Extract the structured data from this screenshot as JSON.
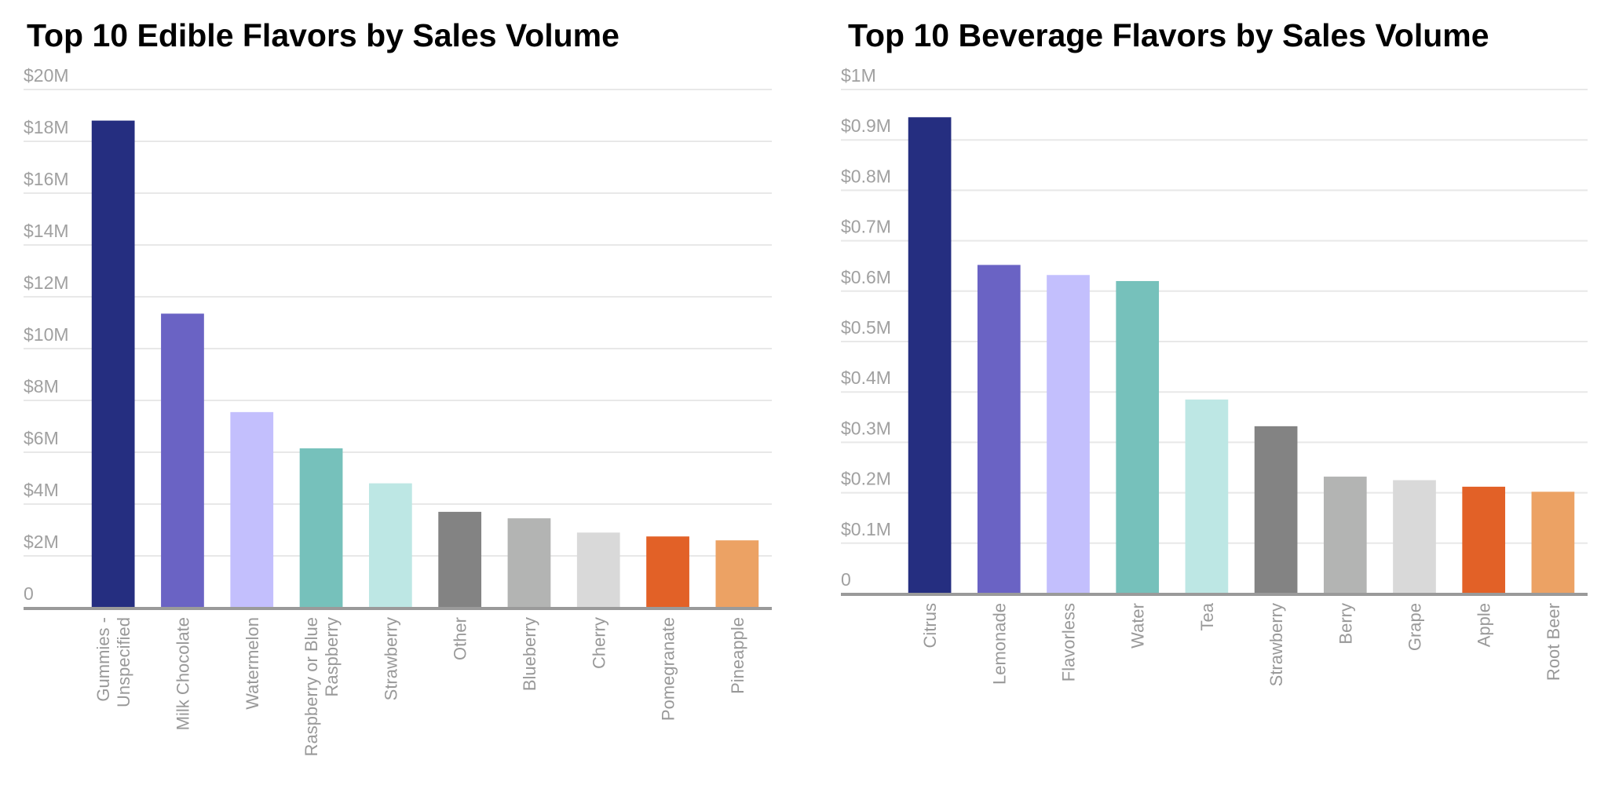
{
  "chart_data": [
    {
      "type": "bar",
      "title": "Top 10 Edible Flavors by Sales Volume",
      "xlabel": "",
      "ylabel": "",
      "ylim": [
        0,
        20
      ],
      "unit": "$M",
      "grid": true,
      "yticks": [
        0,
        2,
        4,
        6,
        8,
        10,
        12,
        14,
        16,
        18,
        20
      ],
      "ytick_labels": [
        "0",
        "$2M",
        "$4M",
        "$6M",
        "$8M",
        "$10M",
        "$12M",
        "$14M",
        "$16M",
        "$18M",
        "$20M"
      ],
      "categories": [
        [
          "Gummies -",
          "Unspecified"
        ],
        [
          "Milk Chocolate"
        ],
        [
          "Watermelon"
        ],
        [
          "Raspberry or Blue",
          "Raspberry"
        ],
        [
          "Strawberry"
        ],
        [
          "Other"
        ],
        [
          "Blueberry"
        ],
        [
          "Cherry"
        ],
        [
          "Pomegranate"
        ],
        [
          "Pineapple"
        ]
      ],
      "values": [
        18.8,
        11.35,
        7.55,
        6.15,
        4.8,
        3.7,
        3.45,
        2.9,
        2.75,
        2.6
      ],
      "colors": [
        "#252e80",
        "#6a63c4",
        "#c3bffd",
        "#76c1bb",
        "#bde7e4",
        "#838383",
        "#b3b4b3",
        "#d9d9d9",
        "#e26127",
        "#eca264"
      ]
    },
    {
      "type": "bar",
      "title": "Top 10 Beverage Flavors by Sales Volume",
      "xlabel": "",
      "ylabel": "",
      "ylim": [
        0,
        1
      ],
      "unit": "$M",
      "grid": true,
      "yticks": [
        0,
        0.1,
        0.2,
        0.3,
        0.4,
        0.5,
        0.6,
        0.7,
        0.8,
        0.9,
        1
      ],
      "ytick_labels": [
        "0",
        "$0.1M",
        "$0.2M",
        "$0.3M",
        "$0.4M",
        "$0.5M",
        "$0.6M",
        "$0.7M",
        "$0.8M",
        "$0.9M",
        "$1M"
      ],
      "categories": [
        [
          "Citrus"
        ],
        [
          "Lemonade"
        ],
        [
          "Flavorless"
        ],
        [
          "Water"
        ],
        [
          "Tea"
        ],
        [
          "Strawberry"
        ],
        [
          "Berry"
        ],
        [
          "Grape"
        ],
        [
          "Apple"
        ],
        [
          "Root Beer"
        ]
      ],
      "values": [
        0.945,
        0.652,
        0.632,
        0.62,
        0.385,
        0.332,
        0.232,
        0.225,
        0.212,
        0.202
      ],
      "colors": [
        "#252e80",
        "#6a63c4",
        "#c3bffd",
        "#76c1bb",
        "#bde7e4",
        "#838383",
        "#b3b4b3",
        "#d9d9d9",
        "#e26127",
        "#eca264"
      ]
    }
  ]
}
